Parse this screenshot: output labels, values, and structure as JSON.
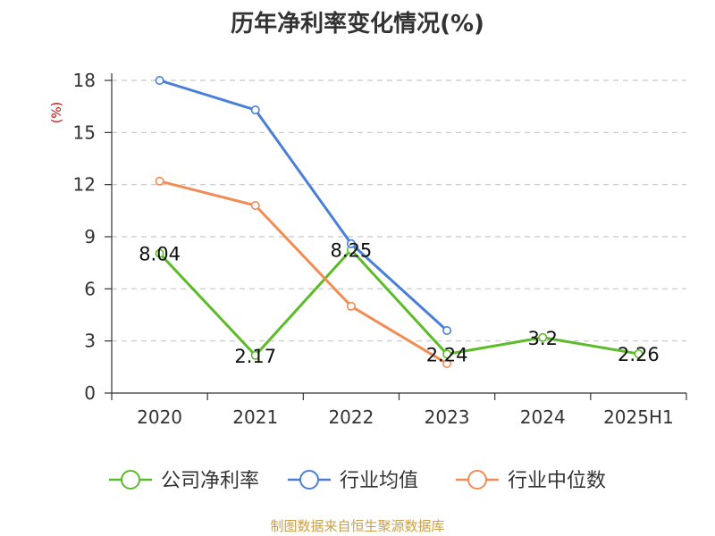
{
  "chart_data": {
    "type": "line",
    "title": "历年净利率变化情况(%)",
    "ylabel": "(%)",
    "categories": [
      "2020",
      "2021",
      "2022",
      "2023",
      "2024",
      "2025H1"
    ],
    "ylim": [
      0,
      18
    ],
    "yticks": [
      0,
      3,
      6,
      9,
      12,
      15,
      18
    ],
    "grid": true,
    "legend_position": "bottom",
    "series": [
      {
        "name": "公司净利率",
        "color": "#5dbb2a",
        "values": [
          8.04,
          2.17,
          8.25,
          2.24,
          3.2,
          2.26
        ],
        "labels": [
          "8.04",
          "2.17",
          "8.25",
          "2.24",
          "3.2",
          "2.26"
        ]
      },
      {
        "name": "行业均值",
        "color": "#4a7fd9",
        "values": [
          18.0,
          16.3,
          8.6,
          3.6,
          null,
          null
        ]
      },
      {
        "name": "行业中位数",
        "color": "#f28c55",
        "values": [
          12.2,
          10.8,
          5.0,
          1.7,
          null,
          null
        ]
      }
    ]
  },
  "footer": {
    "source": "制图数据来自恒生聚源数据库"
  }
}
